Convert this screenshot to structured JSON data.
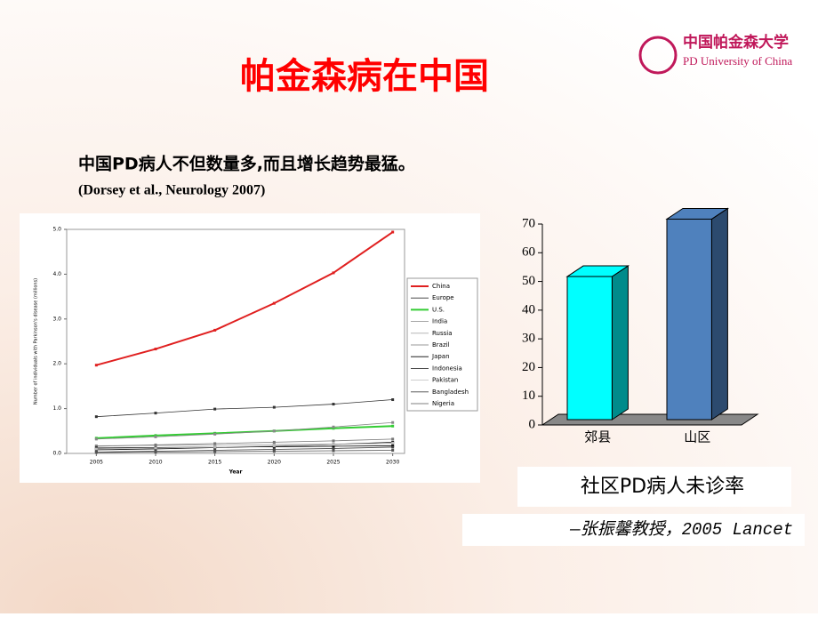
{
  "slide": {
    "title": "帕金森病在中国",
    "subtitle": "中国PD病人不但数量多,而且增长趋势最猛。",
    "source": "(Dorsey et al., Neurology 2007)",
    "logo_cn": "中国帕金森大学",
    "logo_en": "PD University of China",
    "caption": "社区PD病人未诊率",
    "citation": "—张振馨教授，2005 Lancet"
  },
  "chart_data": [
    {
      "type": "line",
      "xlabel": "Year",
      "ylabel": "Number of individuals with Parkinson's disease (millions)",
      "x": [
        2005,
        2010,
        2015,
        2020,
        2025,
        2030
      ],
      "xlim": [
        2002.5,
        2031
      ],
      "xticks": [
        2005,
        2010,
        2015,
        2020,
        2025,
        2030
      ],
      "ylim": [
        0,
        5
      ],
      "yticks": [
        {
          "value": 0,
          "label": "0.0"
        },
        {
          "value": 1,
          "label": "1.0"
        },
        {
          "value": 2,
          "label": "2.0"
        },
        {
          "value": 3,
          "label": "3.0"
        },
        {
          "value": 4,
          "label": "4.0"
        },
        {
          "value": 5,
          "label": "5.0"
        }
      ],
      "series": [
        {
          "name": "China",
          "color": "#e02020",
          "values": [
            1.97,
            2.33,
            2.75,
            3.35,
            4.03,
            4.94
          ]
        },
        {
          "name": "Europe",
          "color": "#333333",
          "values": [
            0.82,
            0.9,
            0.99,
            1.03,
            1.1,
            1.2
          ]
        },
        {
          "name": "U.S.",
          "color": "#33cc33",
          "values": [
            0.34,
            0.4,
            0.45,
            0.5,
            0.56,
            0.61
          ]
        },
        {
          "name": "India",
          "color": "#888888",
          "values": [
            0.32,
            0.37,
            0.43,
            0.5,
            0.59,
            0.69
          ]
        },
        {
          "name": "Russia",
          "color": "#aaaaaa",
          "values": [
            0.17,
            0.18,
            0.19,
            0.2,
            0.21,
            0.22
          ]
        },
        {
          "name": "Brazil",
          "color": "#777777",
          "values": [
            0.16,
            0.19,
            0.22,
            0.25,
            0.28,
            0.32
          ]
        },
        {
          "name": "Japan",
          "color": "#000000",
          "values": [
            0.12,
            0.13,
            0.14,
            0.15,
            0.16,
            0.17
          ]
        },
        {
          "name": "Indonesia",
          "color": "#111111",
          "values": [
            0.08,
            0.1,
            0.13,
            0.16,
            0.2,
            0.25
          ]
        },
        {
          "name": "Pakistan",
          "color": "#bbbbbb",
          "values": [
            0.1,
            0.12,
            0.14,
            0.17,
            0.2,
            0.23
          ]
        },
        {
          "name": "Bangladesh",
          "color": "#444444",
          "values": [
            0.03,
            0.05,
            0.07,
            0.09,
            0.11,
            0.14
          ]
        },
        {
          "name": "Nigeria",
          "color": "#555555",
          "values": [
            0.02,
            0.03,
            0.04,
            0.05,
            0.06,
            0.07
          ]
        }
      ]
    },
    {
      "type": "bar",
      "categories": [
        "郊县",
        "山区"
      ],
      "values": [
        48,
        68
      ],
      "colors": [
        "#00ffff",
        "#4f81bd"
      ],
      "ylim": [
        0,
        70
      ],
      "yticks": [
        0,
        10,
        20,
        30,
        40,
        50,
        60,
        70
      ]
    }
  ]
}
